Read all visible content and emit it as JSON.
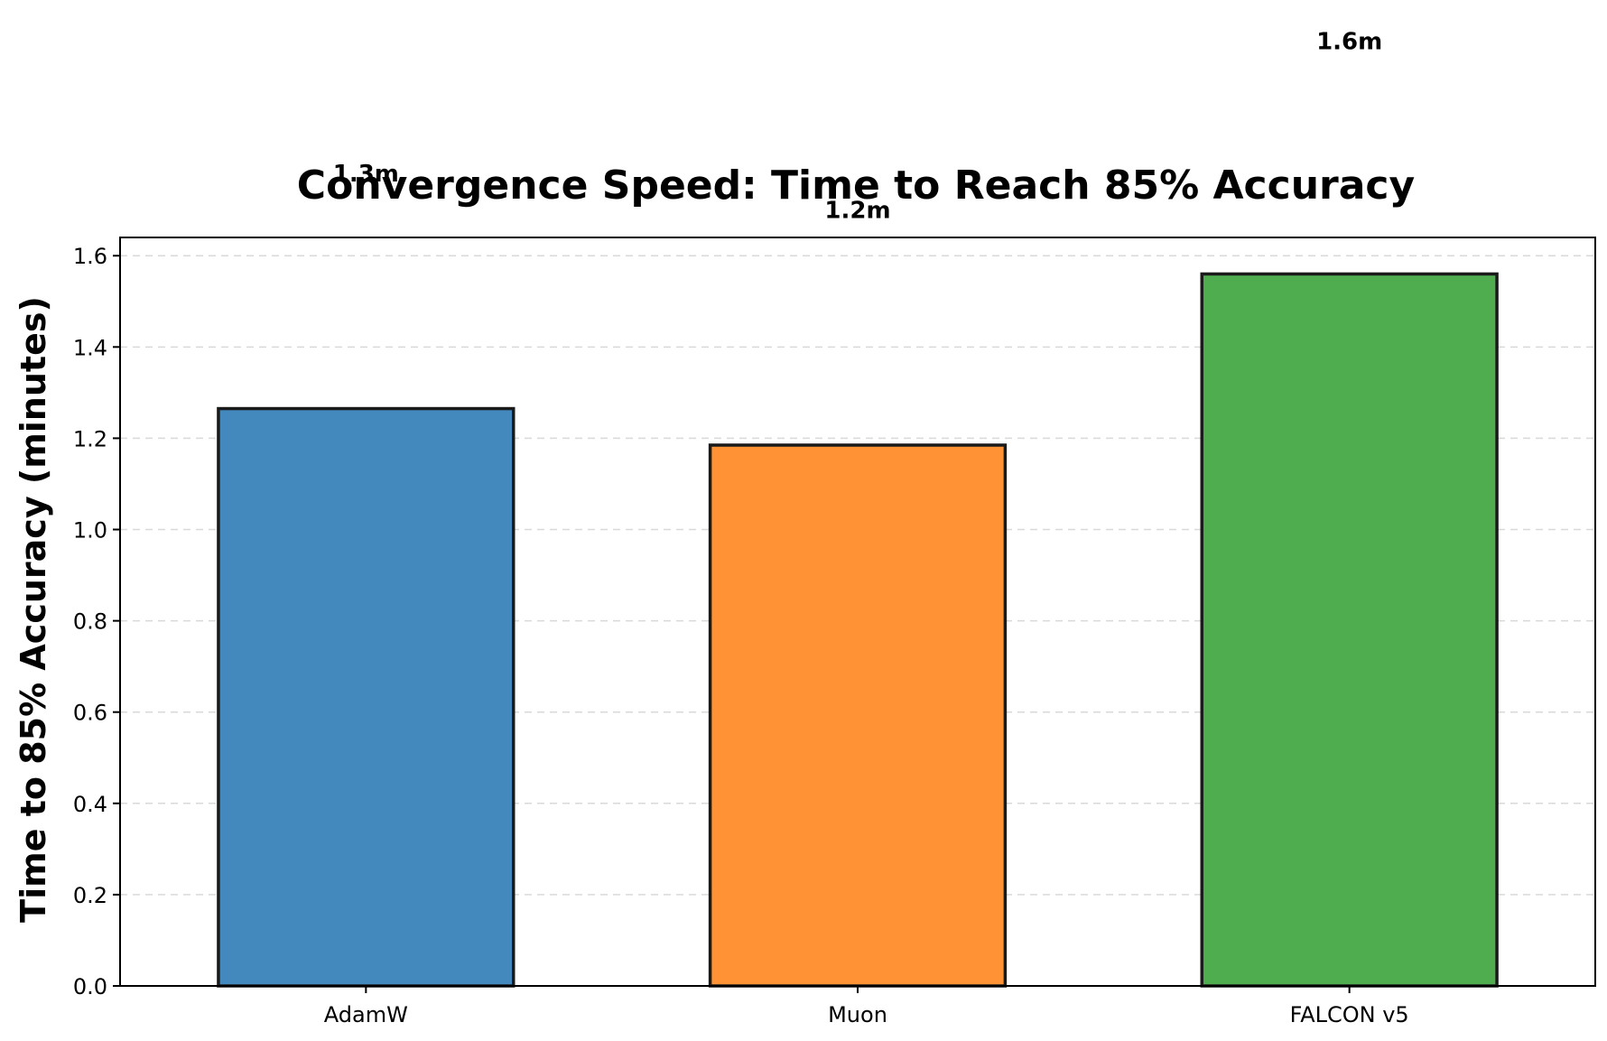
{
  "chart_data": {
    "type": "bar",
    "title": "Convergence Speed: Time to Reach 85% Accuracy",
    "xlabel": "",
    "ylabel": "Time to 85% Accuracy (minutes)",
    "categories": [
      "AdamW",
      "Muon",
      "FALCON v5"
    ],
    "values": [
      1.265,
      1.185,
      1.56
    ],
    "data_labels": [
      "1.3m",
      "1.2m",
      "1.6m"
    ],
    "label_values": [
      1.78,
      1.7,
      2.07
    ],
    "colors": [
      "#4389be",
      "#ff9234",
      "#4fac4f"
    ],
    "edge_color": "#1a1a1a",
    "ylim": [
      0,
      1.64
    ],
    "yticks": [
      0.0,
      0.2,
      0.4,
      0.6,
      0.8,
      1.0,
      1.2,
      1.4,
      1.6
    ],
    "ytick_labels": [
      "0.0",
      "0.2",
      "0.4",
      "0.6",
      "0.8",
      "1.0",
      "1.2",
      "1.4",
      "1.6"
    ],
    "grid": "y-dashed"
  }
}
